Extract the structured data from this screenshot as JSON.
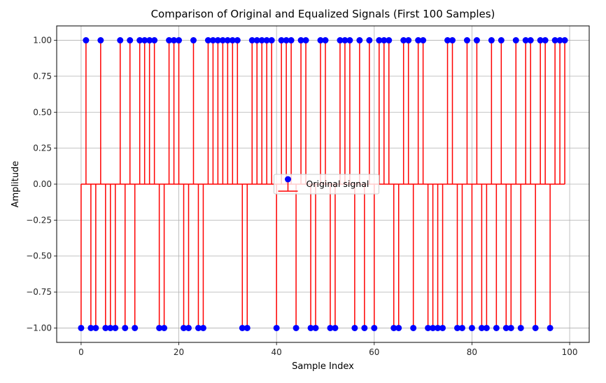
{
  "chart_data": {
    "type": "stem",
    "title": "Comparison of Original and Equalized Signals (First 100 Samples)",
    "xlabel": "Sample Index",
    "ylabel": "Amplitude",
    "xlim": [
      -5,
      104
    ],
    "ylim": [
      -1.1,
      1.1
    ],
    "xticks": [
      0,
      20,
      40,
      60,
      80,
      100
    ],
    "yticks": [
      -1.0,
      -0.75,
      -0.5,
      -0.25,
      0.0,
      0.25,
      0.5,
      0.75,
      1.0
    ],
    "xtick_labels": [
      "0",
      "20",
      "40",
      "60",
      "80",
      "100"
    ],
    "ytick_labels": [
      "−1.00",
      "−0.75",
      "−0.50",
      "−0.25",
      "0.00",
      "0.25",
      "0.50",
      "0.75",
      "1.00"
    ],
    "grid": true,
    "legend_position": "center",
    "baseline": 0,
    "series": [
      {
        "name": "Original signal",
        "marker_color": "#0000ff",
        "stem_color": "#ff0000",
        "x": [
          0,
          1,
          2,
          3,
          4,
          5,
          6,
          7,
          8,
          9,
          10,
          11,
          12,
          13,
          14,
          15,
          16,
          17,
          18,
          19,
          20,
          21,
          22,
          23,
          24,
          25,
          26,
          27,
          28,
          29,
          30,
          31,
          32,
          33,
          34,
          35,
          36,
          37,
          38,
          39,
          40,
          41,
          42,
          43,
          44,
          45,
          46,
          47,
          48,
          49,
          50,
          51,
          52,
          53,
          54,
          55,
          56,
          57,
          58,
          59,
          60,
          61,
          62,
          63,
          64,
          65,
          66,
          67,
          68,
          69,
          70,
          71,
          72,
          73,
          74,
          75,
          76,
          77,
          78,
          79,
          80,
          81,
          82,
          83,
          84,
          85,
          86,
          87,
          88,
          89,
          90,
          91,
          92,
          93,
          94,
          95,
          96,
          97,
          98,
          99
        ],
        "values": [
          -1,
          1,
          -1,
          -1,
          1,
          -1,
          -1,
          -1,
          1,
          -1,
          1,
          -1,
          1,
          1,
          1,
          1,
          -1,
          -1,
          1,
          1,
          1,
          -1,
          -1,
          1,
          -1,
          -1,
          1,
          1,
          1,
          1,
          1,
          1,
          1,
          -1,
          -1,
          1,
          1,
          1,
          1,
          1,
          -1,
          1,
          1,
          1,
          -1,
          1,
          1,
          -1,
          -1,
          1,
          1,
          -1,
          -1,
          1,
          1,
          1,
          -1,
          1,
          -1,
          1,
          -1,
          1,
          1,
          1,
          -1,
          -1,
          1,
          1,
          -1,
          1,
          1,
          -1,
          -1,
          -1,
          -1,
          1,
          1,
          -1,
          -1,
          1,
          -1,
          1,
          -1,
          -1,
          1,
          -1,
          1,
          -1,
          -1,
          1,
          -1,
          1,
          1,
          -1,
          1,
          1,
          -1,
          1,
          1,
          1
        ]
      }
    ]
  }
}
